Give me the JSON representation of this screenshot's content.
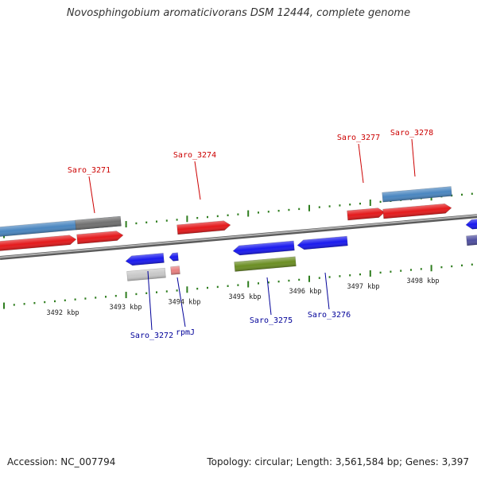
{
  "title": "Novosphingobium aromaticivorans DSM 12444, complete genome",
  "footer": {
    "accession": "Accession: NC_007794",
    "summary": "Topology: circular; Length: 3,561,584 bp; Genes: 3,397"
  },
  "scale": {
    "unit_labels": [
      "3492 kbp",
      "3493 kbp",
      "3494 kbp",
      "3495 kbp",
      "3496 kbp",
      "3497 kbp",
      "3498 kbp"
    ]
  },
  "gene_labels": {
    "top": [
      "Saro_3271",
      "Saro_3274",
      "Saro_3277",
      "Saro_3278"
    ],
    "bottom": [
      "Saro_3272",
      "rpmJ",
      "Saro_3275",
      "Saro_3276"
    ]
  },
  "colors": {
    "backbone": "#8a8a8a",
    "tick": "#2e7d1e",
    "red": "#e41a1c",
    "blue": "#1a1aee",
    "steel_blue": "#4a86c0",
    "gray": "#707070",
    "light_gray": "#c8c8c8",
    "pink": "#e88080",
    "olive": "#6b8e23",
    "slate": "#5050a0",
    "top_label": "#cc0000",
    "bottom_label": "#000099"
  }
}
